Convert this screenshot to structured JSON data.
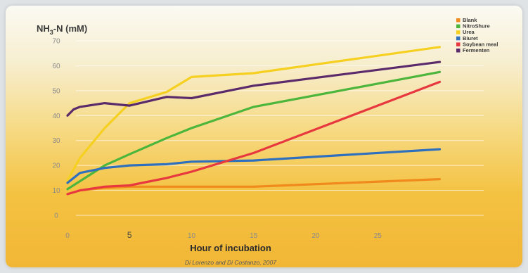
{
  "chart_data": {
    "type": "line",
    "ylabel_main": "NH",
    "ylabel_sub": "3",
    "ylabel_rest": "-N (mM)",
    "xlabel": "Hour of incubation",
    "credit": "Di Lorenzo and Di Costanzo, 2007",
    "ylim": [
      0,
      70
    ],
    "xlim": [
      0,
      30
    ],
    "yticks": [
      "0",
      "10",
      "20",
      "30",
      "40",
      "50",
      "60",
      "70"
    ],
    "xticks": [
      "0",
      "5",
      "10",
      "15",
      "20",
      "25"
    ],
    "grid": true,
    "legend_position": "top-right",
    "series": [
      {
        "name": "Blank",
        "color": "#f08a1c",
        "x": [
          0,
          1,
          3,
          5,
          8,
          10,
          15,
          30
        ],
        "y": [
          8.5,
          10,
          11,
          11.5,
          11.5,
          11.5,
          11.5,
          14.5
        ]
      },
      {
        "name": "NitroShure",
        "color": "#4cb53b",
        "x": [
          0,
          3,
          5,
          8,
          10,
          15,
          30
        ],
        "y": [
          10.5,
          20,
          24.5,
          31,
          35,
          43.5,
          57.5
        ]
      },
      {
        "name": "Urea",
        "color": "#f6d021",
        "x": [
          0,
          1,
          3,
          5,
          8,
          10,
          15,
          30
        ],
        "y": [
          14,
          23,
          35,
          45,
          49.5,
          55.5,
          57,
          67.5
        ]
      },
      {
        "name": "Biuret",
        "color": "#2e6fbe",
        "x": [
          0,
          1,
          3,
          5,
          8,
          10,
          15,
          30
        ],
        "y": [
          13,
          17,
          19,
          20,
          20.5,
          21.5,
          22,
          26.5
        ]
      },
      {
        "name": "Soybean meal",
        "color": "#e8383f",
        "x": [
          0,
          1,
          3,
          5,
          8,
          10,
          15,
          30
        ],
        "y": [
          8.5,
          10,
          11.5,
          12,
          15,
          17.5,
          25,
          53.5
        ]
      },
      {
        "name": "Fermenten",
        "color": "#5a2a6a",
        "x": [
          0,
          0.5,
          1,
          3,
          5,
          8,
          10,
          15,
          30
        ],
        "y": [
          40,
          42.5,
          43.5,
          45,
          44,
          47.5,
          47,
          52,
          61.5
        ]
      }
    ]
  }
}
